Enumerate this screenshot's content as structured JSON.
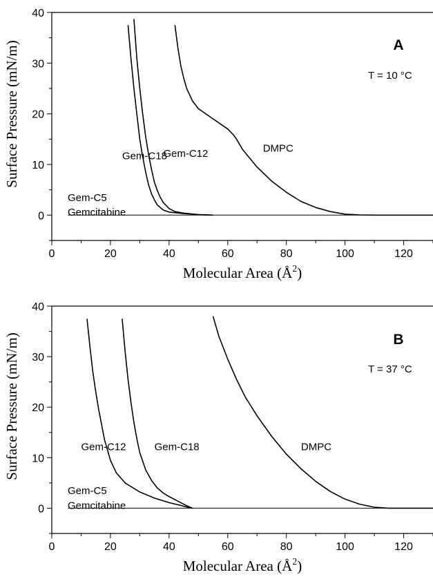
{
  "chart_data": [
    {
      "type": "line",
      "panel_label": "A",
      "condition": "T = 10 °C",
      "xlabel": "Molecular Area (Å",
      "xlabel_sup": "2",
      "xlabel_end": ")",
      "ylabel": "Surface Pressure (mN/m)",
      "xlim": [
        0,
        130
      ],
      "ylim": [
        -5,
        40
      ],
      "xticks": [
        0,
        20,
        40,
        60,
        80,
        100,
        120
      ],
      "yticks": [
        0,
        10,
        20,
        30,
        40
      ],
      "grid": false,
      "series": [
        {
          "name": "Gem-C5 / Gemcitabine",
          "x": [
            5.5,
            130
          ],
          "y": [
            0,
            0
          ]
        },
        {
          "name": "Gem-C18",
          "x": [
            26,
            27,
            28,
            29,
            30,
            31,
            32,
            33,
            34,
            35,
            36,
            38,
            40,
            45,
            50,
            55
          ],
          "y": [
            37.5,
            31,
            25,
            20,
            15,
            11.5,
            8.5,
            6,
            4.2,
            3,
            2,
            1,
            0.6,
            0.3,
            0.1,
            0
          ]
        },
        {
          "name": "Gem-C12",
          "x": [
            28,
            29,
            30,
            31,
            32,
            33,
            34,
            35,
            36,
            37,
            38,
            40,
            42,
            45,
            50,
            55
          ],
          "y": [
            38.7,
            31,
            25,
            20,
            15.5,
            12,
            9,
            6.5,
            4.8,
            3.5,
            2.5,
            1.3,
            0.7,
            0.4,
            0.1,
            0
          ]
        },
        {
          "name": "DMPC",
          "x": [
            42,
            43,
            44,
            45,
            46,
            48,
            50,
            55,
            58,
            60,
            62,
            63,
            65,
            70,
            75,
            80,
            85,
            90,
            95,
            100,
            105,
            110,
            130
          ],
          "y": [
            37.5,
            33,
            29.5,
            27,
            25,
            22.5,
            21,
            19,
            17.8,
            17,
            15.8,
            15,
            13,
            9.5,
            6.7,
            4.5,
            2.7,
            1.5,
            0.7,
            0.2,
            0.05,
            0,
            0
          ]
        }
      ],
      "annotations": [
        {
          "text": "Gem-C18",
          "x": 24,
          "y": 11
        },
        {
          "text": "Gem-C12",
          "x": 38,
          "y": 11.5
        },
        {
          "text": "DMPC",
          "x": 72,
          "y": 12.5
        },
        {
          "text": "Gem-C5",
          "x": 13,
          "y": 2.5
        },
        {
          "text": "Gemcitabine",
          "x": 13,
          "y": 1.8
        }
      ]
    },
    {
      "type": "line",
      "panel_label": "B",
      "condition": "T = 37 °C",
      "xlabel": "Molecular Area (Å",
      "xlabel_sup": "2",
      "xlabel_end": ")",
      "ylabel": "Surface Pressure (mN/m)",
      "xlim": [
        0,
        130
      ],
      "ylim": [
        -5,
        40
      ],
      "xticks": [
        0,
        20,
        40,
        60,
        80,
        100,
        120
      ],
      "yticks": [
        0,
        10,
        20,
        30,
        40
      ],
      "grid": false,
      "series": [
        {
          "name": "Gem-C5 / Gemcitabine",
          "x": [
            5.5,
            130
          ],
          "y": [
            0,
            0
          ]
        },
        {
          "name": "Gem-C12",
          "x": [
            12,
            13,
            14,
            15,
            16,
            17,
            18,
            20,
            22,
            25,
            30,
            35,
            40,
            45,
            47,
            48
          ],
          "y": [
            37.5,
            32,
            27,
            23,
            19.5,
            16.5,
            13.5,
            9.5,
            7,
            5,
            3.2,
            2,
            1.1,
            0.4,
            0.1,
            0
          ]
        },
        {
          "name": "Gem-C18",
          "x": [
            24,
            25,
            26,
            27,
            28,
            29,
            30,
            32,
            34,
            36,
            38,
            40,
            42,
            44,
            46,
            48
          ],
          "y": [
            37.5,
            31,
            25.5,
            21,
            17,
            13.8,
            11,
            7.6,
            5.5,
            4,
            3,
            2.3,
            1.7,
            1.1,
            0.5,
            0
          ]
        },
        {
          "name": "DMPC",
          "x": [
            55,
            57,
            60,
            63,
            66,
            70,
            75,
            80,
            85,
            90,
            95,
            100,
            105,
            110,
            115,
            130
          ],
          "y": [
            38,
            34,
            29.5,
            25.5,
            22,
            18.3,
            14.2,
            10.7,
            7.8,
            5.3,
            3.3,
            1.8,
            0.8,
            0.2,
            0,
            0
          ]
        }
      ],
      "annotations": [
        {
          "text": "Gem-C12",
          "x": 10,
          "y": 11.5
        },
        {
          "text": "Gem-C18",
          "x": 35,
          "y": 11.5
        },
        {
          "text": "DMPC",
          "x": 85,
          "y": 11.5
        },
        {
          "text": "Gem-C5",
          "x": 13,
          "y": 2.5
        },
        {
          "text": "Gemcitabine",
          "x": 13,
          "y": 1.8
        }
      ]
    }
  ]
}
